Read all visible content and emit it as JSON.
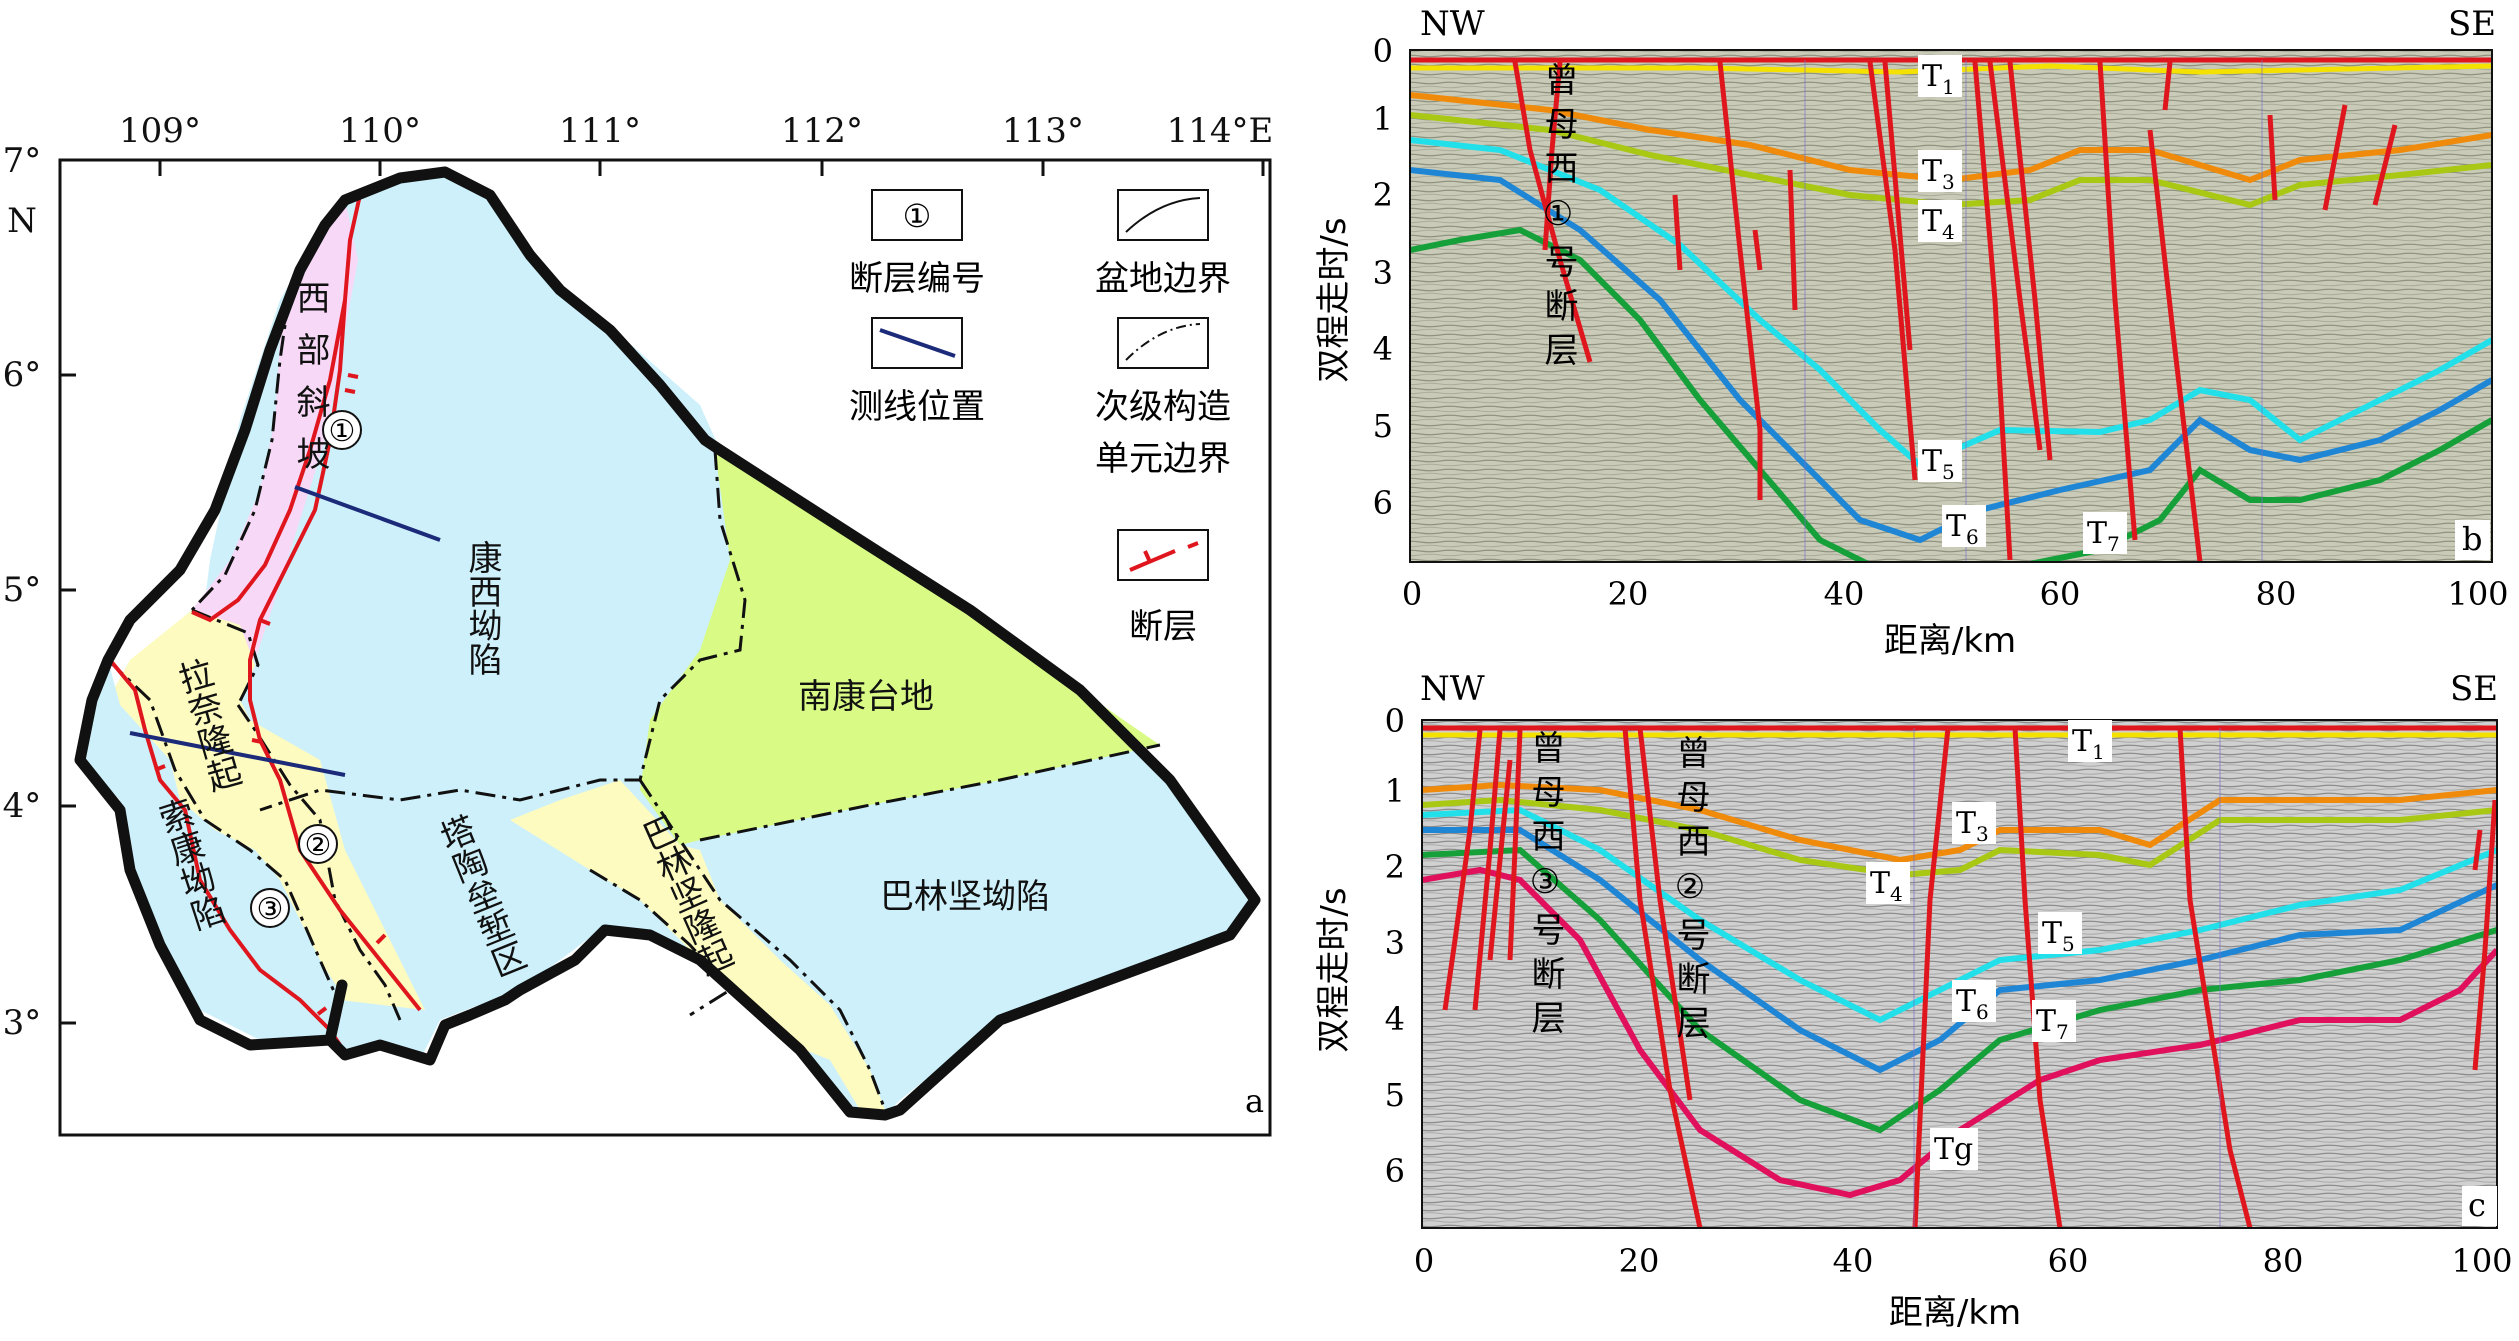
{
  "colors": {
    "fault": "#e0161e",
    "profile_line": "#1c2a7a",
    "kangxi_fill": "#cdf0fa",
    "slope_fill": "#f7d9f7",
    "uplift_fill": "#fdfbc0",
    "platform_fill": "#d9fb86",
    "T1": "#f4e100",
    "T3": "#f08a0a",
    "T4": "#a8c814",
    "T5": "#22e0ea",
    "T6": "#1f86d6",
    "T7": "#16a03a",
    "Tg": "#e0105c"
  },
  "map": {
    "panel_label": "a",
    "lon_labels": [
      "109°",
      "110°",
      "111°",
      "112°",
      "113°",
      "114°E"
    ],
    "lat_labels": [
      "7°",
      "6°",
      "5°",
      "4°",
      "3°"
    ],
    "lat_unit": "N",
    "units": {
      "kangxi": "康西坳陷",
      "nankang": "南康台地",
      "balinjian_dep": "巴林坚坳陷",
      "balinjian_up": "巴林坚隆起",
      "tatao": "塔陶垒堑区",
      "lana": "拉奈隆起",
      "suokang": "索康坳陷",
      "west_slope": "西部斜坡"
    },
    "fault_numbers": [
      "①",
      "②",
      "③"
    ],
    "legend": {
      "fault_no_symbol": "①",
      "fault_no": "断层编号",
      "basin_boundary": "盆地边界",
      "profile_location": "测线位置",
      "secondary_boundary_1": "次级构造",
      "secondary_boundary_2": "单元边界",
      "fault": "断层"
    }
  },
  "section_b": {
    "panel_label": "b",
    "left_dir": "NW",
    "right_dir": "SE",
    "y_label": "双程走时/s",
    "x_label": "距离/km",
    "x_ticks": [
      "0",
      "20",
      "40",
      "60",
      "80",
      "100"
    ],
    "y_ticks": [
      "0",
      "1",
      "2",
      "3",
      "4",
      "5",
      "6"
    ],
    "fault_label": "曾母西①号断层",
    "horizons": {
      "T1": "T",
      "T3": "T",
      "T4": "T",
      "T5": "T",
      "T6": "T",
      "T7": "T"
    },
    "subs": {
      "T1": "1",
      "T3": "3",
      "T4": "4",
      "T5": "5",
      "T6": "6",
      "T7": "7"
    }
  },
  "section_c": {
    "panel_label": "c",
    "left_dir": "NW",
    "right_dir": "SE",
    "y_label": "双程走时/s",
    "x_label": "距离/km",
    "x_ticks": [
      "0",
      "20",
      "40",
      "60",
      "80",
      "100"
    ],
    "y_ticks": [
      "0",
      "1",
      "2",
      "3",
      "4",
      "5",
      "6"
    ],
    "fault_label_3": "曾母西③号断层",
    "fault_label_2": "曾母西②号断层",
    "tg_label": "Tg"
  }
}
